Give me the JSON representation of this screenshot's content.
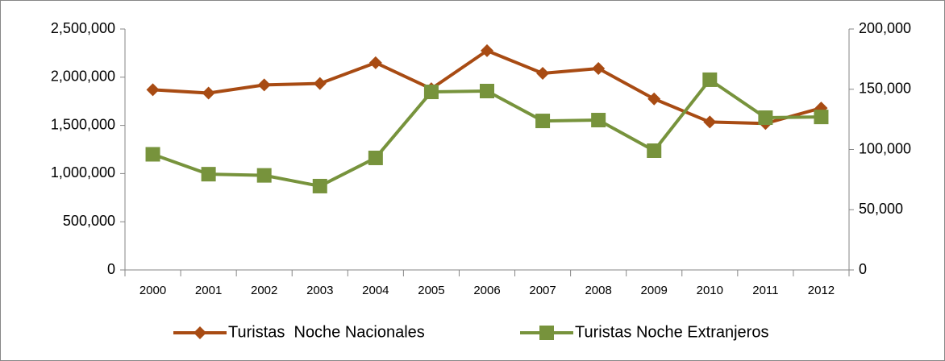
{
  "chart_data": {
    "type": "line",
    "categories": [
      "2000",
      "2001",
      "2002",
      "2003",
      "2004",
      "2005",
      "2006",
      "2007",
      "2008",
      "2009",
      "2010",
      "2011",
      "2012"
    ],
    "series": [
      {
        "name": "Turistas  Noche Nacionales",
        "color": "#a84b13",
        "marker": "diamond",
        "axis": "y",
        "values": [
          1870000,
          1835000,
          1920000,
          1935000,
          2150000,
          1880000,
          2275000,
          2040000,
          2090000,
          1775000,
          1535000,
          1520000,
          1680000
        ]
      },
      {
        "name": "Turistas Noche Extranjeros",
        "color": "#77933c",
        "marker": "square",
        "axis": "y2",
        "values": [
          96000,
          79500,
          78500,
          69600,
          93000,
          147800,
          148500,
          123700,
          124400,
          99000,
          157900,
          126400,
          127000
        ]
      }
    ],
    "ylim": [
      0,
      2500000
    ],
    "yticks": [
      0,
      {
        "value": 500000,
        "label": "500,000"
      },
      {
        "value": 1000000,
        "label": "1,000,000"
      },
      {
        "value": 1500000,
        "label": "1,500,000"
      },
      {
        "value": 2000000,
        "label": "2,000,000"
      },
      {
        "value": 2500000,
        "label": "2,500,000"
      }
    ],
    "y2lim": [
      0,
      200000
    ],
    "y2ticks": [
      0,
      {
        "value": 50000,
        "label": "50,000"
      },
      {
        "value": 100000,
        "label": "100,000"
      },
      {
        "value": 150000,
        "label": "150,000"
      },
      {
        "value": 200000,
        "label": "200,000"
      }
    ],
    "grid": false,
    "legend": "bottom"
  }
}
